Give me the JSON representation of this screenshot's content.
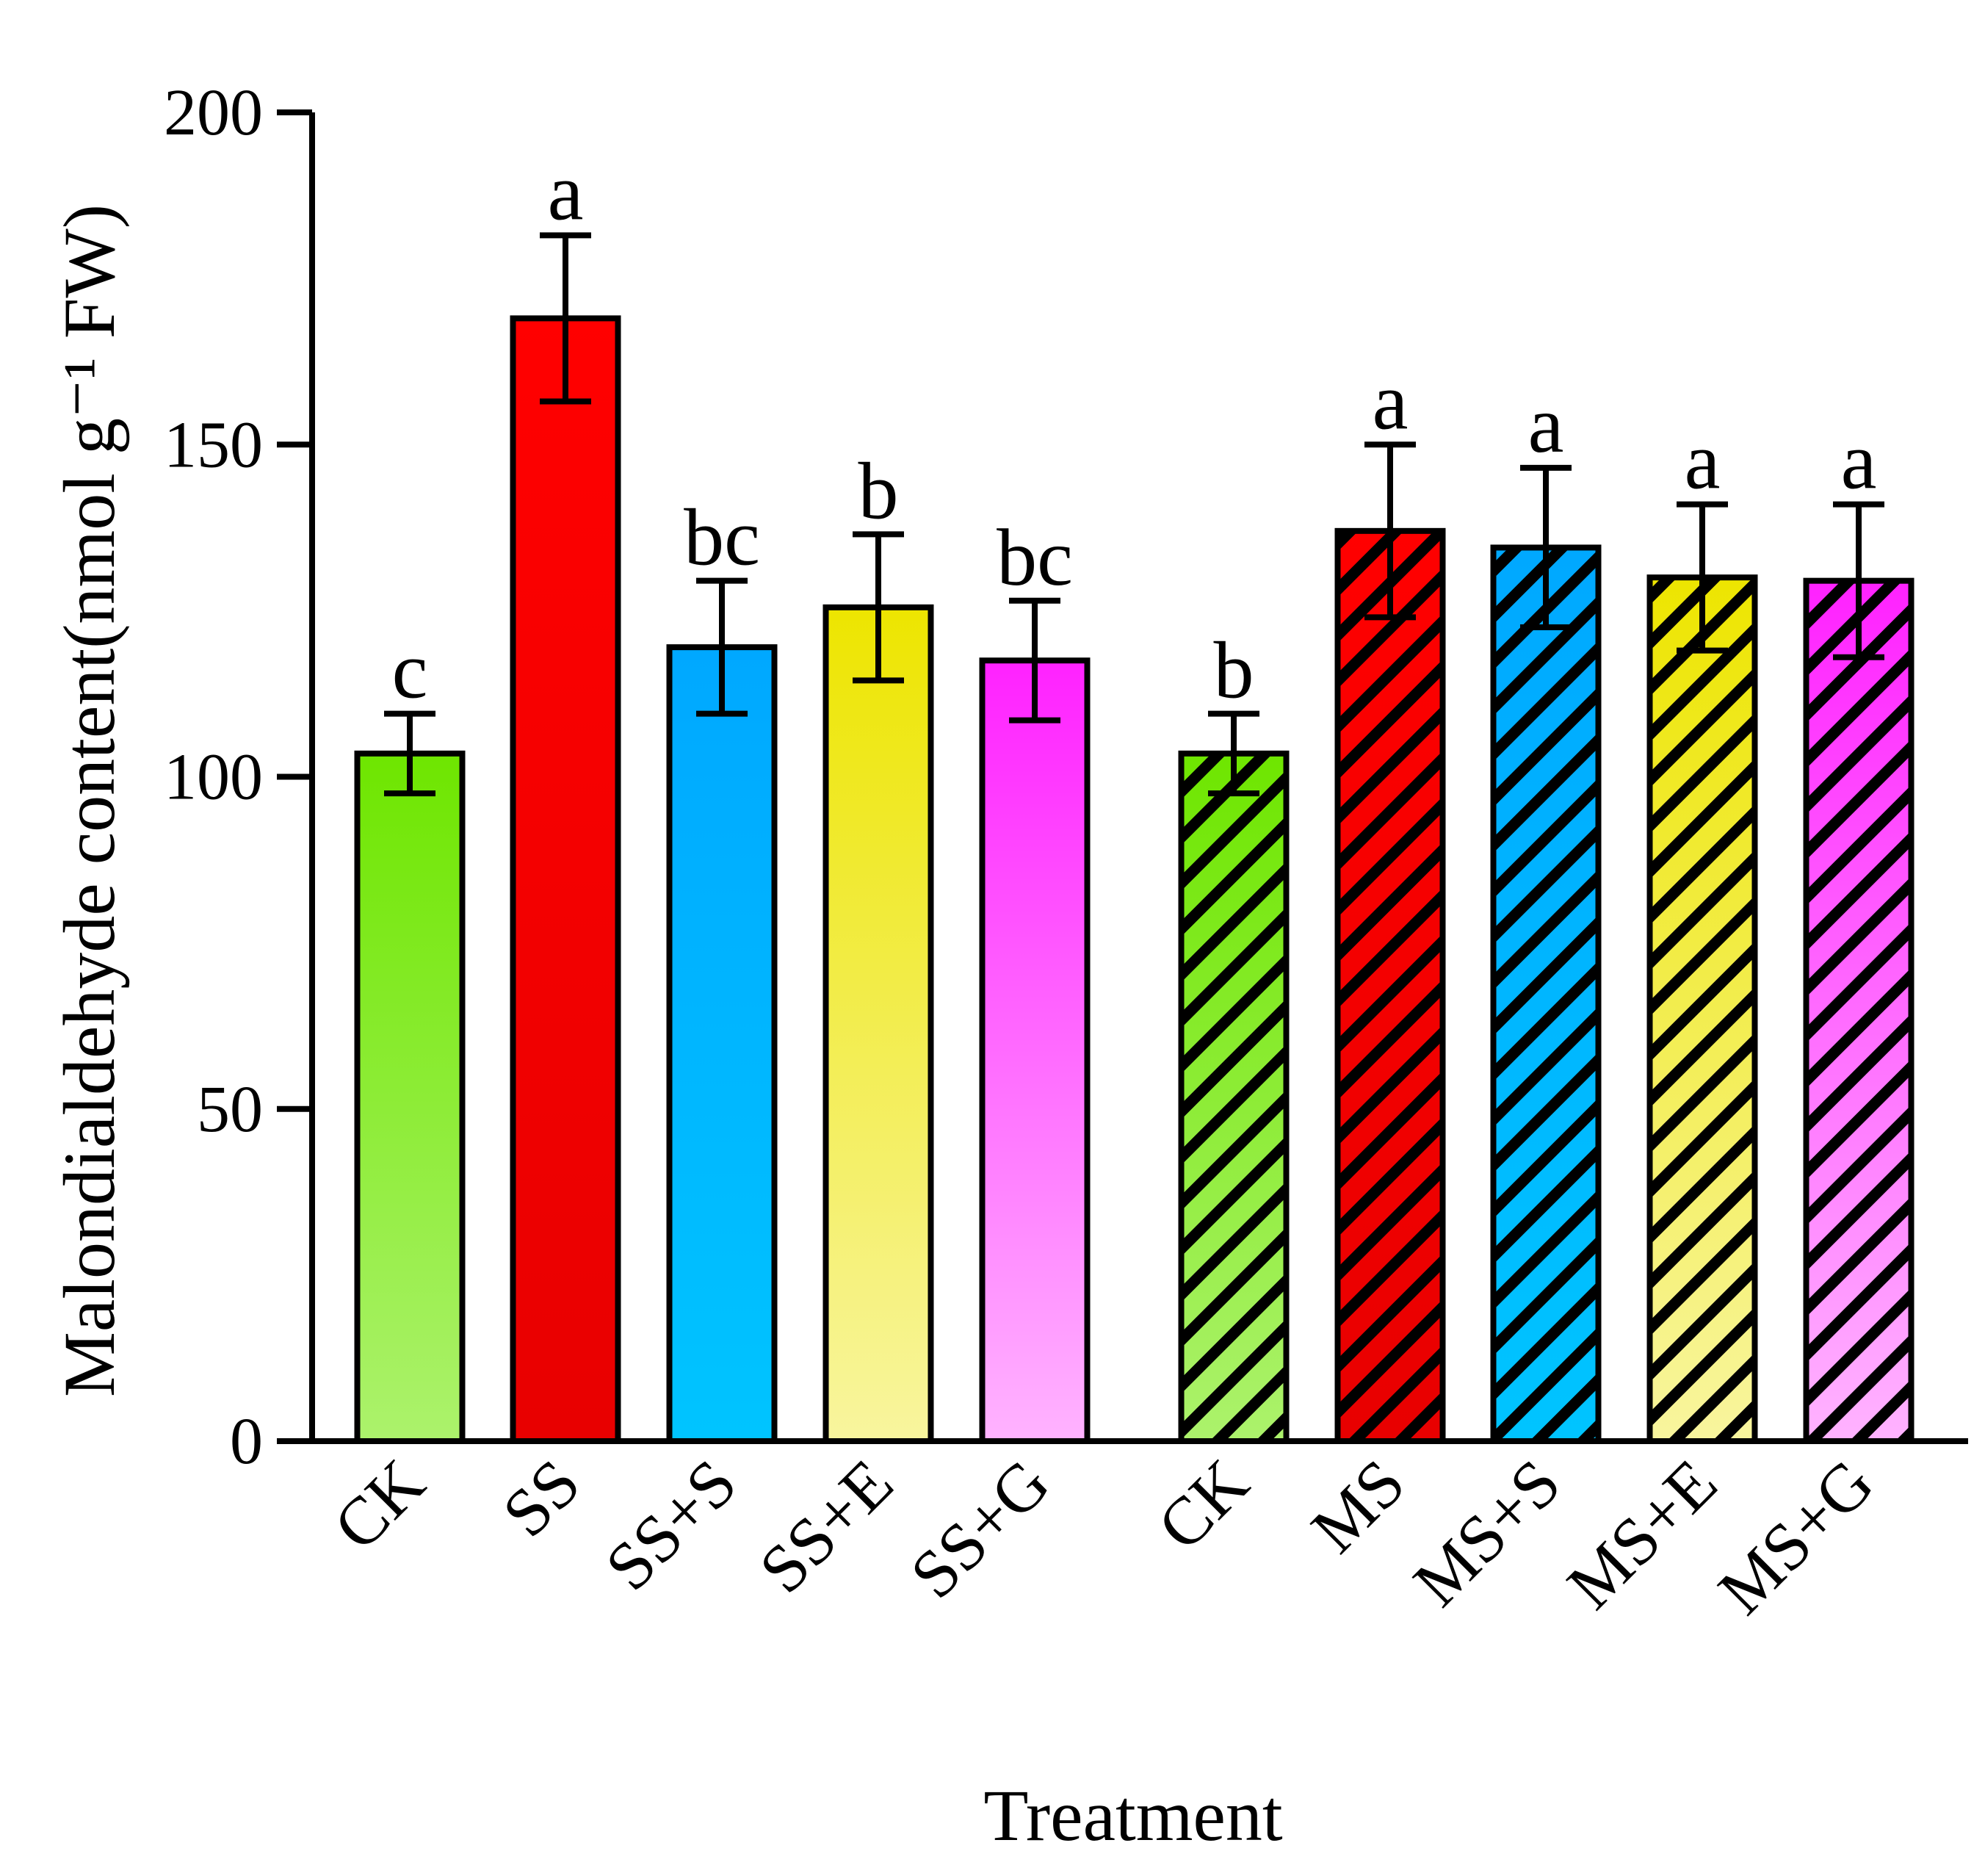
{
  "chart_data": {
    "type": "bar",
    "title": "",
    "xlabel": "Treatment",
    "ylabel": "Malondialdehyde content(nmol g⁻¹ FW)",
    "ylim": [
      0,
      200
    ],
    "yticks": [
      "0",
      "50",
      "100",
      "150",
      "200"
    ],
    "categories": [
      "CK",
      "SS",
      "SS+S",
      "SS+E",
      "SS+G",
      "CK",
      "MS",
      "MS+S",
      "MS+E",
      "MS+G"
    ],
    "values": [
      103.5,
      169,
      119.5,
      125.5,
      117.5,
      103.5,
      137,
      134.5,
      130,
      129.5
    ],
    "errors": [
      6,
      12.5,
      10,
      11,
      9,
      6,
      13,
      12,
      11,
      11.5
    ],
    "significance": [
      "c",
      "a",
      "bc",
      "b",
      "bc",
      "b",
      "a",
      "a",
      "a",
      "a"
    ],
    "groups": [
      {
        "stress": "SS",
        "hatched": false
      },
      {
        "stress": "MS",
        "hatched": true
      }
    ],
    "colors": {
      "top": [
        "#6ee600",
        "#ff0000",
        "#00a8ff",
        "#ede500",
        "#ff22ff",
        "#6ee600",
        "#ff0000",
        "#00a8ff",
        "#ede500",
        "#ff22ff"
      ],
      "bottom": [
        "#acf26c",
        "#e80000",
        "#00c4ff",
        "#f8f59e",
        "#ffb3ff",
        "#acf26c",
        "#e80000",
        "#00c4ff",
        "#f8f59e",
        "#ffb3ff"
      ]
    },
    "grid": false,
    "legend": "none"
  }
}
